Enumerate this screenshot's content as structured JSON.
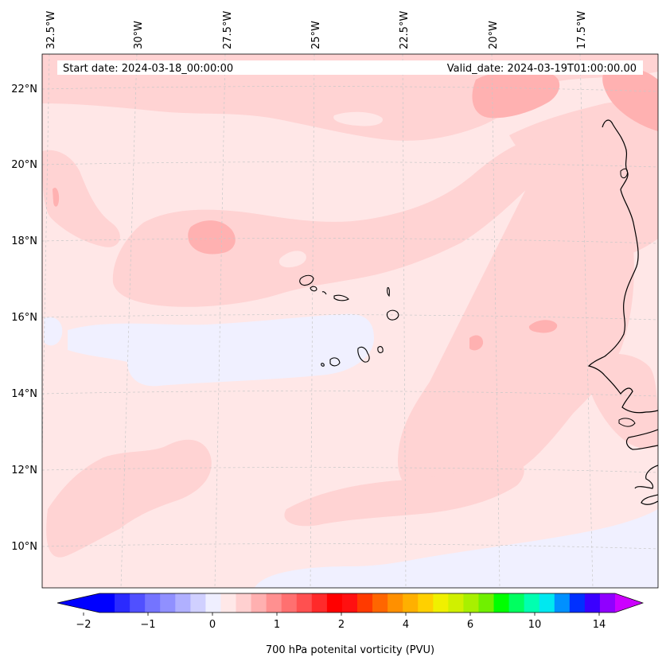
{
  "header": {
    "start_date": "Start date: 2024-03-18_00:00:00",
    "valid_date": "Valid_date: 2024-03-19T01:00:00.00"
  },
  "map": {
    "lon_labels": [
      "32.5°W",
      "30°W",
      "27.5°W",
      "25°W",
      "22.5°W",
      "20°W",
      "17.5°W"
    ],
    "lat_labels": [
      "22°N",
      "20°N",
      "18°N",
      "16°N",
      "14°N",
      "12°N",
      "10°N"
    ]
  },
  "colorbar": {
    "label": "700 hPa potenital vorticity (PVU)",
    "ticks": [
      "−2",
      "−1",
      "0",
      "1",
      "2",
      "4",
      "6",
      "10",
      "14"
    ],
    "colors": [
      "#0000ff",
      "#2a2aff",
      "#5050ff",
      "#7474ff",
      "#9090ff",
      "#b0b0ff",
      "#d0d0ff",
      "#efefff",
      "#ffe8e8",
      "#ffd0d0",
      "#ffb0b0",
      "#ff9090",
      "#ff7070",
      "#ff5050",
      "#ff2a2a",
      "#ff0000",
      "#ff1010",
      "#ff3a00",
      "#ff6600",
      "#ff9000",
      "#ffb000",
      "#ffd000",
      "#f0f000",
      "#d0f000",
      "#a8f000",
      "#70f000",
      "#00ff00",
      "#00ff60",
      "#00ffb0",
      "#00e8f0",
      "#0090ff",
      "#0030ff",
      "#3a00ff",
      "#9000ff"
    ],
    "extend_low": "#0000ff",
    "extend_high": "#cc00ff"
  }
}
